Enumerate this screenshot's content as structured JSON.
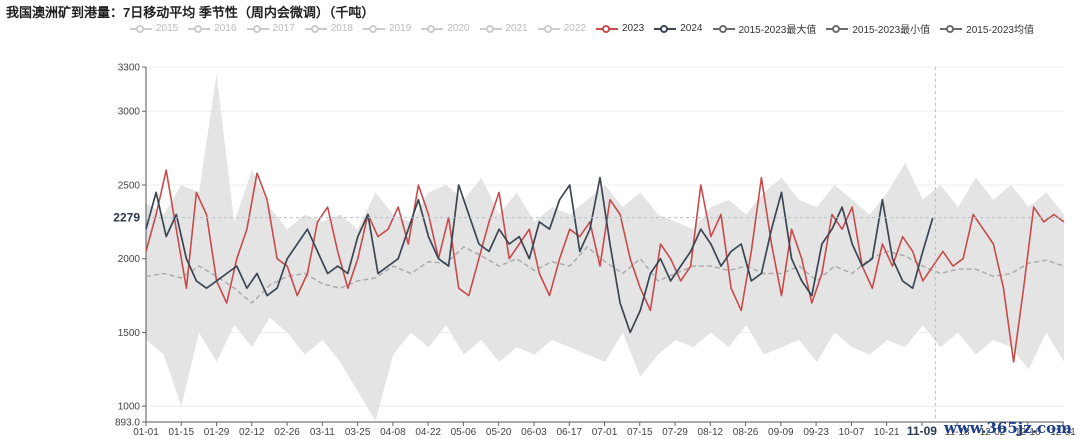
{
  "title": "我国澳洲矿到港量：7日移动平均 季节性（周内会微调）（千吨）",
  "watermark": "www.365jz.com",
  "chart_data": {
    "type": "line",
    "title": "我国澳洲矿到港量：7日移动平均 季节性（周内会微调）（千吨）",
    "unit": "千吨",
    "legend": [
      {
        "name": "2015",
        "color": "#cccccc",
        "active": false
      },
      {
        "name": "2016",
        "color": "#cccccc",
        "active": false
      },
      {
        "name": "2017",
        "color": "#cccccc",
        "active": false
      },
      {
        "name": "2018",
        "color": "#cccccc",
        "active": false
      },
      {
        "name": "2019",
        "color": "#cccccc",
        "active": false
      },
      {
        "name": "2020",
        "color": "#cccccc",
        "active": false
      },
      {
        "name": "2021",
        "color": "#cccccc",
        "active": false
      },
      {
        "name": "2022",
        "color": "#cccccc",
        "active": false
      },
      {
        "name": "2023",
        "color": "#c94a4a",
        "active": true
      },
      {
        "name": "2024",
        "color": "#3a4654",
        "active": true
      },
      {
        "name": "2015-2023最大值",
        "color": "#6b6b6b",
        "active": true
      },
      {
        "name": "2015-2023最小值",
        "color": "#6b6b6b",
        "active": true
      },
      {
        "name": "2015-2023均值",
        "color": "#6b6b6b",
        "active": true
      }
    ],
    "x_ticks": [
      "01-01",
      "01-15",
      "01-29",
      "02-12",
      "02-26",
      "03-11",
      "03-25",
      "04-08",
      "04-22",
      "05-06",
      "05-20",
      "06-03",
      "06-17",
      "07-01",
      "07-15",
      "07-29",
      "08-12",
      "08-26",
      "09-09",
      "09-23",
      "10-07",
      "10-21",
      "11-09",
      "11-18",
      "12-02",
      "12-16",
      "12-31"
    ],
    "y_ticks": [
      893,
      1000,
      1500,
      2000,
      2500,
      3000,
      3300
    ],
    "y_tick_labels": [
      "893.0",
      "1000",
      "1500",
      "2000",
      "2500",
      "3000",
      "3300"
    ],
    "ylim": [
      893,
      3300
    ],
    "grid": true,
    "crosshair": {
      "x_label": "11-09",
      "y_label": "2279",
      "y_value": 2279,
      "day": 313
    },
    "series": [
      {
        "name": "2015-2023最大值",
        "role": "band_upper",
        "color": "#e4e4e4",
        "x": [
          0,
          7,
          14,
          21,
          28,
          35,
          42,
          49,
          56,
          63,
          70,
          77,
          84,
          91,
          98,
          105,
          112,
          119,
          126,
          133,
          140,
          147,
          154,
          161,
          168,
          175,
          182,
          189,
          196,
          203,
          210,
          217,
          224,
          231,
          238,
          245,
          252,
          259,
          266,
          273,
          280,
          287,
          294,
          301,
          308,
          315,
          322,
          329,
          336,
          343,
          350,
          357,
          364
        ],
        "y": [
          2380,
          2300,
          2500,
          2450,
          3250,
          2250,
          2600,
          2350,
          2200,
          2300,
          2250,
          2300,
          2200,
          2450,
          2300,
          2250,
          2450,
          2500,
          2400,
          2550,
          2300,
          2450,
          2250,
          2350,
          2300,
          2400,
          2500,
          2350,
          2450,
          2300,
          2250,
          2200,
          2350,
          2400,
          2300,
          2450,
          2550,
          2400,
          2350,
          2500,
          2400,
          2300,
          2450,
          2650,
          2400,
          2500,
          2350,
          2550,
          2400,
          2500,
          2350,
          2450,
          2300
        ]
      },
      {
        "name": "2015-2023最小值",
        "role": "band_lower",
        "color": "#e4e4e4",
        "x": [
          0,
          7,
          14,
          21,
          28,
          35,
          42,
          49,
          56,
          63,
          70,
          77,
          84,
          91,
          98,
          105,
          112,
          119,
          126,
          133,
          140,
          147,
          154,
          161,
          168,
          175,
          182,
          189,
          196,
          203,
          210,
          217,
          224,
          231,
          238,
          245,
          252,
          259,
          266,
          273,
          280,
          287,
          294,
          301,
          308,
          315,
          322,
          329,
          336,
          343,
          350,
          357,
          364
        ],
        "y": [
          1450,
          1350,
          1000,
          1500,
          1300,
          1550,
          1400,
          1600,
          1500,
          1350,
          1450,
          1300,
          1100,
          900,
          1350,
          1500,
          1400,
          1550,
          1350,
          1450,
          1300,
          1400,
          1350,
          1450,
          1400,
          1350,
          1300,
          1500,
          1200,
          1350,
          1450,
          1400,
          1500,
          1400,
          1550,
          1350,
          1400,
          1450,
          1300,
          1500,
          1400,
          1350,
          1450,
          1400,
          1550,
          1400,
          1500,
          1350,
          1450,
          1400,
          1250,
          1500,
          1300
        ]
      },
      {
        "name": "2015-2023均值",
        "role": "dashed",
        "color": "#a9a9a9",
        "x": [
          0,
          7,
          14,
          21,
          28,
          35,
          42,
          49,
          56,
          63,
          70,
          77,
          84,
          91,
          98,
          105,
          112,
          119,
          126,
          133,
          140,
          147,
          154,
          161,
          168,
          175,
          182,
          189,
          196,
          203,
          210,
          217,
          224,
          231,
          238,
          245,
          252,
          259,
          266,
          273,
          280,
          287,
          294,
          301,
          308,
          315,
          322,
          329,
          336,
          343,
          350,
          357,
          364
        ],
        "y": [
          1880,
          1900,
          1870,
          1950,
          1880,
          1800,
          1700,
          1820,
          1880,
          1900,
          1830,
          1800,
          1850,
          1870,
          1950,
          1900,
          1980,
          1970,
          2080,
          2020,
          1950,
          2000,
          1920,
          1980,
          1950,
          2080,
          1980,
          1900,
          2000,
          1850,
          1900,
          1950,
          1950,
          1920,
          1950,
          1900,
          1900,
          1950,
          1850,
          1950,
          1900,
          2000,
          2050,
          2020,
          1950,
          1900,
          1930,
          1930,
          1880,
          1900,
          1970,
          1990,
          1950
        ]
      },
      {
        "name": "2023",
        "role": "line",
        "color": "#c94a4a",
        "x": [
          0,
          4,
          8,
          12,
          16,
          20,
          24,
          28,
          32,
          36,
          40,
          44,
          48,
          52,
          56,
          60,
          64,
          68,
          72,
          76,
          80,
          84,
          88,
          92,
          96,
          100,
          104,
          108,
          112,
          116,
          120,
          124,
          128,
          132,
          136,
          140,
          144,
          148,
          152,
          156,
          160,
          164,
          168,
          172,
          176,
          180,
          184,
          188,
          192,
          196,
          200,
          204,
          208,
          212,
          216,
          220,
          224,
          228,
          232,
          236,
          240,
          244,
          248,
          252,
          256,
          260,
          264,
          268,
          272,
          276,
          280,
          284,
          288,
          292,
          296,
          300,
          304,
          308,
          312,
          316,
          320,
          324,
          328,
          332,
          336,
          340,
          344,
          348,
          352,
          356,
          360,
          364
        ],
        "y": [
          2050,
          2300,
          2600,
          2200,
          1800,
          2450,
          2300,
          1850,
          1700,
          2000,
          2200,
          2580,
          2400,
          2000,
          1950,
          1750,
          1900,
          2250,
          2350,
          2050,
          1800,
          2000,
          2300,
          2150,
          2200,
          2350,
          2100,
          2500,
          2300,
          2000,
          2280,
          1800,
          1750,
          2000,
          2250,
          2450,
          2000,
          2100,
          2200,
          1900,
          1750,
          2000,
          2200,
          2150,
          2250,
          1950,
          2400,
          2300,
          2000,
          1800,
          1650,
          2100,
          2000,
          1850,
          1950,
          2500,
          2150,
          2300,
          1800,
          1650,
          2050,
          2550,
          2100,
          1750,
          2200,
          2000,
          1700,
          1900,
          2300,
          2200,
          2350,
          1950,
          1800,
          2100,
          1950,
          2150,
          2050,
          1850,
          1950,
          2050,
          1950,
          2000,
          2300,
          2200,
          2100,
          1800,
          1300,
          1800,
          2350,
          2250,
          2300,
          2250
        ]
      },
      {
        "name": "2024",
        "role": "line",
        "color": "#3a4654",
        "x": [
          0,
          4,
          8,
          12,
          16,
          20,
          24,
          28,
          32,
          36,
          40,
          44,
          48,
          52,
          56,
          60,
          64,
          68,
          72,
          76,
          80,
          84,
          88,
          92,
          96,
          100,
          104,
          108,
          112,
          116,
          120,
          124,
          128,
          132,
          136,
          140,
          144,
          148,
          152,
          156,
          160,
          164,
          168,
          172,
          176,
          180,
          184,
          188,
          192,
          196,
          200,
          204,
          208,
          212,
          216,
          220,
          224,
          228,
          232,
          236,
          240,
          244,
          248,
          252,
          256,
          260,
          264,
          268,
          272,
          276,
          280,
          284,
          288,
          292,
          296,
          300,
          304,
          308,
          312
        ],
        "y": [
          2200,
          2450,
          2150,
          2300,
          2000,
          1850,
          1800,
          1850,
          1900,
          1950,
          1800,
          1900,
          1750,
          1800,
          2000,
          2100,
          2200,
          2050,
          1900,
          1950,
          1900,
          2150,
          2300,
          1900,
          1950,
          2000,
          2200,
          2400,
          2150,
          2000,
          1950,
          2500,
          2300,
          2100,
          2050,
          2200,
          2100,
          2150,
          2000,
          2250,
          2200,
          2400,
          2500,
          2050,
          2200,
          2550,
          2100,
          1700,
          1500,
          1650,
          1900,
          2000,
          1850,
          1950,
          2050,
          2200,
          2100,
          1950,
          2050,
          2100,
          1850,
          1900,
          2200,
          2450,
          2000,
          1850,
          1750,
          2100,
          2200,
          2350,
          2100,
          1950,
          2000,
          2400,
          2000,
          1850,
          1800,
          2050,
          2280
        ]
      }
    ]
  }
}
